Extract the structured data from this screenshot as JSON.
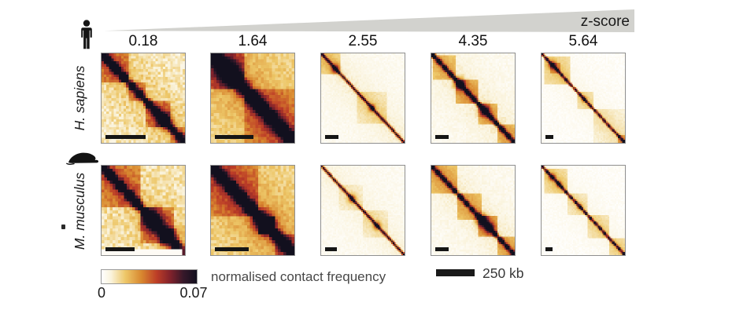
{
  "figure": {
    "zscore_axis_label": "z-score",
    "column_zscores": [
      "0.18",
      "1.64",
      "2.55",
      "4.35",
      "5.64"
    ],
    "rows": [
      {
        "species": "H. sapiens",
        "icon": "human-icon"
      },
      {
        "species": "M. musculus",
        "icon": "mouse-icon"
      }
    ],
    "colorbar": {
      "title": "normalised contact frequency",
      "min_label": "0",
      "max_label": "0.07",
      "stops": [
        [
          0.0,
          "#ffffff"
        ],
        [
          0.1,
          "#faf3dc"
        ],
        [
          0.25,
          "#edc768"
        ],
        [
          0.42,
          "#d8872f"
        ],
        [
          0.58,
          "#bd3d27"
        ],
        [
          0.72,
          "#82222b"
        ],
        [
          0.86,
          "#36182a"
        ],
        [
          1.0,
          "#12101e"
        ]
      ]
    },
    "genomic_scalebar": {
      "label": "250 kb",
      "color": "#1a1a1a"
    },
    "wedge_color": "#d2d2ce",
    "heatmaps": [
      {
        "id": "hs-z0.18",
        "species": "H. sapiens",
        "zscore": "0.18",
        "n": 34,
        "seed": 11,
        "bg": 0.1,
        "noise": 0.15,
        "haze": 0.18,
        "decay": 0.35,
        "diagW": 1.3,
        "diagAmp": 0.95,
        "bead": 0.45,
        "blocks": [
          [
            0.0,
            0.3,
            0.38
          ],
          [
            0.3,
            0.52,
            0.3
          ],
          [
            0.52,
            0.82,
            0.34
          ],
          [
            0.82,
            1.0,
            0.3
          ]
        ],
        "dots": [
          [
            0.73,
            0.75,
            2.2
          ],
          [
            0.15,
            0.4,
            1.5
          ]
        ],
        "scalebar_frac": 0.47
      },
      {
        "id": "hs-z1.64",
        "species": "H. sapiens",
        "zscore": "1.64",
        "n": 30,
        "seed": 23,
        "bg": 0.14,
        "noise": 0.12,
        "haze": 0.3,
        "decay": 0.5,
        "diagW": 2.2,
        "diagAmp": 1.0,
        "bead": 0.25,
        "blocks": [
          [
            0.0,
            0.38,
            0.45
          ],
          [
            0.38,
            1.0,
            0.25
          ]
        ],
        "dots": [
          [
            0.2,
            0.5,
            2.5
          ]
        ],
        "scalebar_frac": 0.45
      },
      {
        "id": "hs-z2.55",
        "species": "H. sapiens",
        "zscore": "2.55",
        "n": 56,
        "seed": 37,
        "bg": 0.03,
        "noise": 0.05,
        "haze": 0.1,
        "decay": 0.25,
        "diagW": 0.8,
        "diagAmp": 0.85,
        "bead": 0.15,
        "blocks": [
          [
            0.0,
            0.22,
            0.22
          ],
          [
            0.42,
            0.78,
            0.12
          ]
        ],
        "dots": [
          [
            0.16,
            0.55,
            1.8
          ],
          [
            0.6,
            0.5,
            1.5
          ]
        ],
        "scalebar_frac": 0.16
      },
      {
        "id": "hs-z4.35",
        "species": "H. sapiens",
        "zscore": "4.35",
        "n": 48,
        "seed": 49,
        "bg": 0.03,
        "noise": 0.06,
        "haze": 0.12,
        "decay": 0.3,
        "diagW": 1.1,
        "diagAmp": 1.05,
        "bead": 0.5,
        "blocks": [
          [
            0.02,
            0.28,
            0.25
          ],
          [
            0.28,
            0.55,
            0.35
          ],
          [
            0.55,
            0.78,
            0.3
          ],
          [
            0.78,
            1.0,
            0.3
          ]
        ],
        "dots": [
          [
            0.33,
            0.7,
            2.0
          ],
          [
            0.63,
            0.7,
            2.0
          ]
        ],
        "scalebar_frac": 0.16
      },
      {
        "id": "hs-z5.64",
        "species": "H. sapiens",
        "zscore": "5.64",
        "n": 58,
        "seed": 61,
        "bg": 0.015,
        "noise": 0.04,
        "haze": 0.06,
        "decay": 0.2,
        "diagW": 0.8,
        "diagAmp": 0.9,
        "bead": 0.4,
        "blocks": [
          [
            0.03,
            0.33,
            0.22
          ],
          [
            0.1,
            0.22,
            0.25
          ],
          [
            0.42,
            0.62,
            0.18
          ],
          [
            0.62,
            1.0,
            0.12
          ],
          [
            0.9,
            1.0,
            0.3
          ]
        ],
        "dots": [
          [
            0.12,
            0.6,
            1.6
          ],
          [
            0.5,
            0.4,
            1.2
          ]
        ],
        "scalebar_frac": 0.09
      },
      {
        "id": "mm-z0.18",
        "species": "M. musculus",
        "zscore": "0.18",
        "n": 30,
        "seed": 73,
        "bg": 0.12,
        "noise": 0.16,
        "haze": 0.15,
        "decay": 0.3,
        "diagW": 1.4,
        "diagAmp": 0.95,
        "bead": 0.5,
        "blocks": [
          [
            0.0,
            0.45,
            0.36
          ],
          [
            0.45,
            0.86,
            0.34
          ],
          [
            0.86,
            1.0,
            0.25
          ]
        ],
        "dots": [
          [
            0.6,
            0.8,
            2.4
          ],
          [
            0.78,
            0.85,
            2.2
          ]
        ],
        "scalebar_frac": 0.34,
        "bottom_strip": true
      },
      {
        "id": "mm-z1.64",
        "species": "M. musculus",
        "zscore": "1.64",
        "n": 30,
        "seed": 89,
        "bg": 0.15,
        "noise": 0.12,
        "haze": 0.28,
        "decay": 0.45,
        "diagW": 1.8,
        "diagAmp": 0.95,
        "bead": 0.35,
        "blocks": [
          [
            0.0,
            0.55,
            0.3
          ],
          [
            0.55,
            0.75,
            0.55
          ],
          [
            0.75,
            1.0,
            0.35
          ]
        ],
        "dots": [
          [
            0.63,
            0.8,
            2.5
          ]
        ],
        "scalebar_frac": 0.4
      },
      {
        "id": "mm-z2.55",
        "species": "M. musculus",
        "zscore": "2.55",
        "n": 56,
        "seed": 97,
        "bg": 0.03,
        "noise": 0.05,
        "haze": 0.08,
        "decay": 0.25,
        "diagW": 0.8,
        "diagAmp": 0.85,
        "bead": 0.2,
        "blocks": [
          [
            0.2,
            0.5,
            0.08
          ],
          [
            0.5,
            0.8,
            0.1
          ]
        ],
        "dots": [
          [
            0.36,
            0.5,
            1.6
          ],
          [
            0.66,
            0.5,
            1.6
          ]
        ],
        "scalebar_frac": 0.14
      },
      {
        "id": "mm-z4.35",
        "species": "M. musculus",
        "zscore": "4.35",
        "n": 48,
        "seed": 103,
        "bg": 0.03,
        "noise": 0.06,
        "haze": 0.12,
        "decay": 0.3,
        "diagW": 1.1,
        "diagAmp": 1.05,
        "bead": 0.55,
        "blocks": [
          [
            0.0,
            0.3,
            0.3
          ],
          [
            0.3,
            0.6,
            0.28
          ],
          [
            0.55,
            0.78,
            0.38
          ],
          [
            0.78,
            1.0,
            0.3
          ]
        ],
        "dots": [
          [
            0.6,
            0.8,
            2.2
          ],
          [
            0.68,
            0.7,
            1.8
          ]
        ],
        "scalebar_frac": 0.16
      },
      {
        "id": "mm-z5.64",
        "species": "M. musculus",
        "zscore": "5.64",
        "n": 58,
        "seed": 119,
        "bg": 0.015,
        "noise": 0.04,
        "haze": 0.06,
        "decay": 0.2,
        "diagW": 0.85,
        "diagAmp": 0.9,
        "bead": 0.45,
        "blocks": [
          [
            0.02,
            0.3,
            0.22
          ],
          [
            0.3,
            0.55,
            0.15
          ],
          [
            0.55,
            0.8,
            0.18
          ],
          [
            0.8,
            1.0,
            0.2
          ]
        ],
        "dots": [
          [
            0.12,
            0.55,
            1.5
          ],
          [
            0.2,
            0.5,
            1.3
          ],
          [
            0.45,
            0.4,
            1.2
          ]
        ],
        "scalebar_frac": 0.08
      }
    ]
  }
}
